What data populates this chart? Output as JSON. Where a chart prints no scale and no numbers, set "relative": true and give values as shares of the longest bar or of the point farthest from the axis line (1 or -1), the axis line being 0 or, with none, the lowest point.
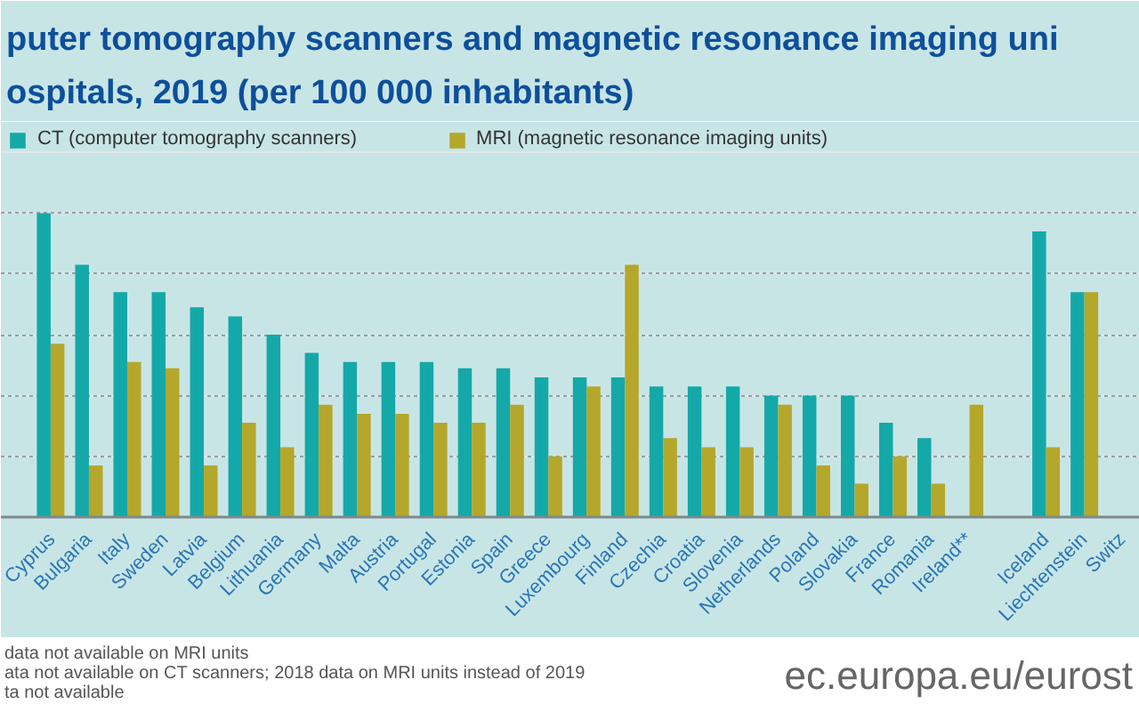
{
  "chart_data": {
    "type": "bar",
    "title": "puter tomography scanners and magnetic resonance imaging uni\nospitals, 2019 (per 100 000 inhabitants)",
    "categories": [
      "Cyprus",
      "Bulgaria",
      "Italy",
      "Sweden",
      "Latvia",
      "Belgium",
      "Lithuania",
      "Germany",
      "Malta",
      "Austria",
      "Portugal",
      "Estonia",
      "Spain",
      "Greece",
      "Luxembourg",
      "Finland",
      "Czechia",
      "Croatia",
      "Slovenia",
      "Netherlands",
      "Poland",
      "Slovakia",
      "France",
      "Romania",
      "Ireland**",
      null,
      "Iceland",
      "Liechtenstein",
      "Switz"
    ],
    "series": [
      {
        "name": "CT (computer tomography scanners)",
        "color": "#14a9a8",
        "values": [
          1,
          0.83,
          0.74,
          0.74,
          0.69,
          0.66,
          0.6,
          0.54,
          0.51,
          0.51,
          0.51,
          0.49,
          0.49,
          0.46,
          0.46,
          0.46,
          0.43,
          0.43,
          0.43,
          0.4,
          0.4,
          0.4,
          0.31,
          0.26,
          null,
          null,
          0.94,
          0.74,
          null
        ]
      },
      {
        "name": "MRI (magnetic resonance imaging units)",
        "color": "#b5a72b",
        "values": [
          0.57,
          0.17,
          0.51,
          0.49,
          0.17,
          0.31,
          0.23,
          0.37,
          0.34,
          0.34,
          0.31,
          0.31,
          0.37,
          0.2,
          0.43,
          0.83,
          0.26,
          0.23,
          0.23,
          0.37,
          0.17,
          0.11,
          0.2,
          0.11,
          0.37,
          null,
          0.23,
          0.74,
          null
        ]
      }
    ],
    "relative": true,
    "grid": "y",
    "legend": "top left",
    "annotations": [
      "data not available on MRI units",
      "ata not available on CT scanners; 2018 data on MRI units instead of 2019",
      "ta not available",
      "ec.europa.eu/eurost"
    ]
  }
}
